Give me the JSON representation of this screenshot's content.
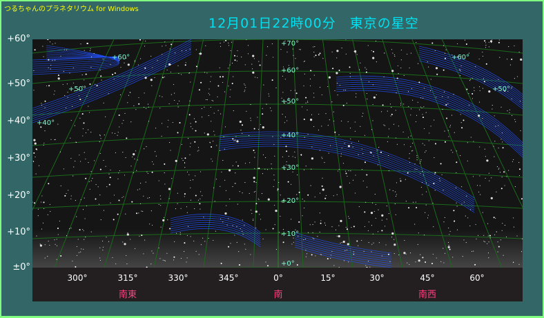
{
  "app_title": "つるちゃんのプラネタリウム for Windows",
  "date_title": "12月01日22時00分　東京の星空",
  "altitude_labels": [
    "+60°",
    "+50°",
    "+40°",
    "+30°",
    "+20°",
    "+10°",
    "±0°"
  ],
  "azimuth_labels": [
    "300°",
    "315°",
    "330°",
    "345°",
    "0°",
    "15°",
    "30°",
    "45°",
    "60°"
  ],
  "direction_labels": [
    "南東",
    "南",
    "南西"
  ],
  "grid_labels": [
    "+70°",
    "+60°",
    "+50°",
    "+40°",
    "+30°",
    "+20°",
    "+10°",
    "+0°",
    "+60°",
    "+50°",
    "+40°",
    "+60°",
    "+50°"
  ],
  "colors": {
    "background": "#336666",
    "border": "#80ff80",
    "title": "#ffff00",
    "date": "#00e0f0",
    "direction": "#ff4080",
    "constellation": "#2050ff",
    "grid": "#1a6a1a"
  }
}
